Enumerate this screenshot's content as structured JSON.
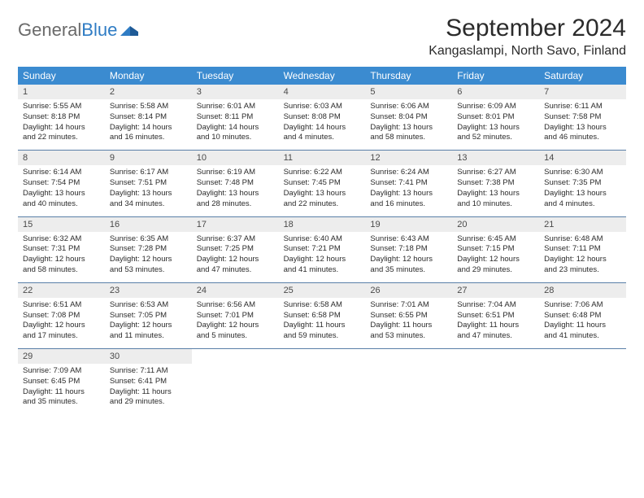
{
  "logo": {
    "text1": "General",
    "text2": "Blue"
  },
  "title": "September 2024",
  "location": "Kangaslampi, North Savo, Finland",
  "colors": {
    "header_bg": "#3b8bd0",
    "header_text": "#ffffff",
    "daynum_bg": "#ededed",
    "week_border": "#5a7fa8",
    "logo_gray": "#6a6a6a",
    "logo_blue": "#2f7cc4",
    "body_text": "#2b2b2b",
    "page_bg": "#ffffff"
  },
  "weekdays": [
    "Sunday",
    "Monday",
    "Tuesday",
    "Wednesday",
    "Thursday",
    "Friday",
    "Saturday"
  ],
  "weeks": [
    [
      {
        "n": "1",
        "sunrise": "5:55 AM",
        "sunset": "8:18 PM",
        "dl1": "Daylight: 14 hours",
        "dl2": "and 22 minutes."
      },
      {
        "n": "2",
        "sunrise": "5:58 AM",
        "sunset": "8:14 PM",
        "dl1": "Daylight: 14 hours",
        "dl2": "and 16 minutes."
      },
      {
        "n": "3",
        "sunrise": "6:01 AM",
        "sunset": "8:11 PM",
        "dl1": "Daylight: 14 hours",
        "dl2": "and 10 minutes."
      },
      {
        "n": "4",
        "sunrise": "6:03 AM",
        "sunset": "8:08 PM",
        "dl1": "Daylight: 14 hours",
        "dl2": "and 4 minutes."
      },
      {
        "n": "5",
        "sunrise": "6:06 AM",
        "sunset": "8:04 PM",
        "dl1": "Daylight: 13 hours",
        "dl2": "and 58 minutes."
      },
      {
        "n": "6",
        "sunrise": "6:09 AM",
        "sunset": "8:01 PM",
        "dl1": "Daylight: 13 hours",
        "dl2": "and 52 minutes."
      },
      {
        "n": "7",
        "sunrise": "6:11 AM",
        "sunset": "7:58 PM",
        "dl1": "Daylight: 13 hours",
        "dl2": "and 46 minutes."
      }
    ],
    [
      {
        "n": "8",
        "sunrise": "6:14 AM",
        "sunset": "7:54 PM",
        "dl1": "Daylight: 13 hours",
        "dl2": "and 40 minutes."
      },
      {
        "n": "9",
        "sunrise": "6:17 AM",
        "sunset": "7:51 PM",
        "dl1": "Daylight: 13 hours",
        "dl2": "and 34 minutes."
      },
      {
        "n": "10",
        "sunrise": "6:19 AM",
        "sunset": "7:48 PM",
        "dl1": "Daylight: 13 hours",
        "dl2": "and 28 minutes."
      },
      {
        "n": "11",
        "sunrise": "6:22 AM",
        "sunset": "7:45 PM",
        "dl1": "Daylight: 13 hours",
        "dl2": "and 22 minutes."
      },
      {
        "n": "12",
        "sunrise": "6:24 AM",
        "sunset": "7:41 PM",
        "dl1": "Daylight: 13 hours",
        "dl2": "and 16 minutes."
      },
      {
        "n": "13",
        "sunrise": "6:27 AM",
        "sunset": "7:38 PM",
        "dl1": "Daylight: 13 hours",
        "dl2": "and 10 minutes."
      },
      {
        "n": "14",
        "sunrise": "6:30 AM",
        "sunset": "7:35 PM",
        "dl1": "Daylight: 13 hours",
        "dl2": "and 4 minutes."
      }
    ],
    [
      {
        "n": "15",
        "sunrise": "6:32 AM",
        "sunset": "7:31 PM",
        "dl1": "Daylight: 12 hours",
        "dl2": "and 58 minutes."
      },
      {
        "n": "16",
        "sunrise": "6:35 AM",
        "sunset": "7:28 PM",
        "dl1": "Daylight: 12 hours",
        "dl2": "and 53 minutes."
      },
      {
        "n": "17",
        "sunrise": "6:37 AM",
        "sunset": "7:25 PM",
        "dl1": "Daylight: 12 hours",
        "dl2": "and 47 minutes."
      },
      {
        "n": "18",
        "sunrise": "6:40 AM",
        "sunset": "7:21 PM",
        "dl1": "Daylight: 12 hours",
        "dl2": "and 41 minutes."
      },
      {
        "n": "19",
        "sunrise": "6:43 AM",
        "sunset": "7:18 PM",
        "dl1": "Daylight: 12 hours",
        "dl2": "and 35 minutes."
      },
      {
        "n": "20",
        "sunrise": "6:45 AM",
        "sunset": "7:15 PM",
        "dl1": "Daylight: 12 hours",
        "dl2": "and 29 minutes."
      },
      {
        "n": "21",
        "sunrise": "6:48 AM",
        "sunset": "7:11 PM",
        "dl1": "Daylight: 12 hours",
        "dl2": "and 23 minutes."
      }
    ],
    [
      {
        "n": "22",
        "sunrise": "6:51 AM",
        "sunset": "7:08 PM",
        "dl1": "Daylight: 12 hours",
        "dl2": "and 17 minutes."
      },
      {
        "n": "23",
        "sunrise": "6:53 AM",
        "sunset": "7:05 PM",
        "dl1": "Daylight: 12 hours",
        "dl2": "and 11 minutes."
      },
      {
        "n": "24",
        "sunrise": "6:56 AM",
        "sunset": "7:01 PM",
        "dl1": "Daylight: 12 hours",
        "dl2": "and 5 minutes."
      },
      {
        "n": "25",
        "sunrise": "6:58 AM",
        "sunset": "6:58 PM",
        "dl1": "Daylight: 11 hours",
        "dl2": "and 59 minutes."
      },
      {
        "n": "26",
        "sunrise": "7:01 AM",
        "sunset": "6:55 PM",
        "dl1": "Daylight: 11 hours",
        "dl2": "and 53 minutes."
      },
      {
        "n": "27",
        "sunrise": "7:04 AM",
        "sunset": "6:51 PM",
        "dl1": "Daylight: 11 hours",
        "dl2": "and 47 minutes."
      },
      {
        "n": "28",
        "sunrise": "7:06 AM",
        "sunset": "6:48 PM",
        "dl1": "Daylight: 11 hours",
        "dl2": "and 41 minutes."
      }
    ],
    [
      {
        "n": "29",
        "sunrise": "7:09 AM",
        "sunset": "6:45 PM",
        "dl1": "Daylight: 11 hours",
        "dl2": "and 35 minutes."
      },
      {
        "n": "30",
        "sunrise": "7:11 AM",
        "sunset": "6:41 PM",
        "dl1": "Daylight: 11 hours",
        "dl2": "and 29 minutes."
      },
      null,
      null,
      null,
      null,
      null
    ]
  ]
}
